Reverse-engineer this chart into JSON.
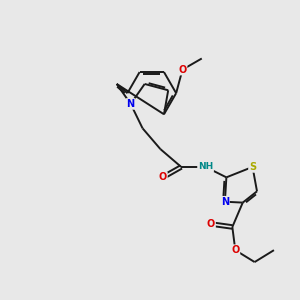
{
  "background_color": "#e8e8e8",
  "bond_color": "#1a1a1a",
  "atom_colors": {
    "N": "#0000ee",
    "O": "#dd0000",
    "S": "#aaaa00",
    "H": "#008888",
    "C": "#1a1a1a"
  },
  "figsize": [
    3.0,
    3.0
  ],
  "dpi": 100,
  "lw": 1.4,
  "fs": 7.0
}
